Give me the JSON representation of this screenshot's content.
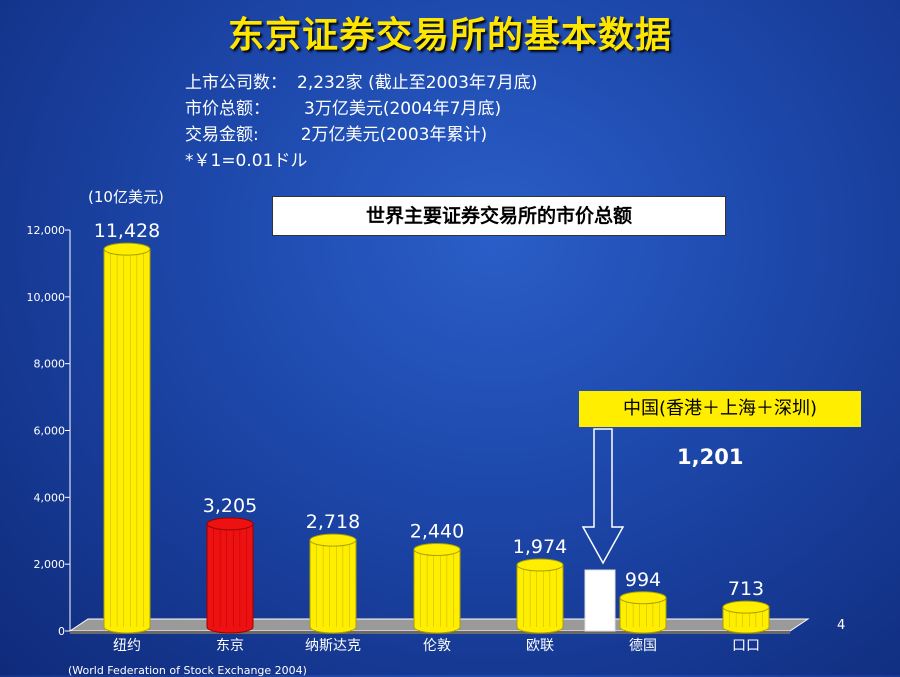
{
  "title": "东京证券交易所的基本数据",
  "info": [
    {
      "label": "上市公司数：",
      "value": "2,232家 (截止至2003年7月底)"
    },
    {
      "label": "市价总额：",
      "value": "3万亿美元(2004年7月底)"
    },
    {
      "label": "交易金额:",
      "value": "2万亿美元(2003年累计)"
    },
    {
      "label": "*￥1=0.01ドル",
      "value": ""
    }
  ],
  "unit_label": "(10亿美元)",
  "china_box": "中国(香港＋上海＋深圳)",
  "china_value": "1,201",
  "source": "(World Federation of Stock Exchange 2004)",
  "page_number": "4",
  "colors": {
    "yellow_bar": "#ffee00",
    "red_bar": "#ee1111",
    "white_bar": "#ffffff",
    "title": "#ffe600"
  },
  "chart_data": {
    "type": "bar",
    "title": "世界主要证券交易所的市价总额",
    "ylabel": "(10亿美元)",
    "ylim": [
      0,
      12000
    ],
    "yticks": [
      "0",
      "2,000",
      "4,000",
      "6,000",
      "8,000",
      "10,000",
      "12,000"
    ],
    "categories": [
      "纽约",
      "东京",
      "纳斯达克",
      "伦敦",
      "欧联",
      "",
      "德国",
      "口口"
    ],
    "values": [
      11428,
      3205,
      2718,
      2440,
      1974,
      null,
      994,
      713
    ],
    "value_labels": [
      "11,428",
      "3,205",
      "2,718",
      "2,440",
      "1,974",
      "",
      "994",
      "713"
    ],
    "highlight": "东京"
  }
}
